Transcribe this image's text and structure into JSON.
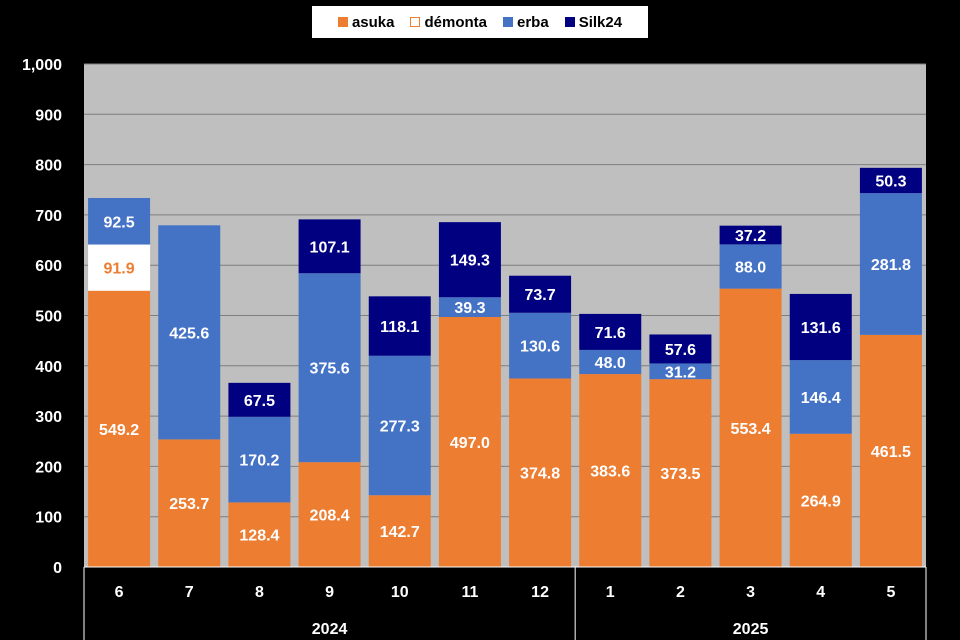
{
  "chart_data": {
    "type": "bar",
    "stacked": true,
    "title": "",
    "xlabel": "",
    "ylabel": "",
    "ylim": [
      0,
      1000
    ],
    "yticks": [
      "0",
      "100",
      "200",
      "300",
      "400",
      "500",
      "600",
      "700",
      "800",
      "900",
      "1,000"
    ],
    "grid": true,
    "legend_position": "top",
    "categories": [
      "6",
      "7",
      "8",
      "9",
      "10",
      "11",
      "12",
      "1",
      "2",
      "3",
      "4",
      "5"
    ],
    "year_groups": [
      {
        "label": "2024",
        "count": 7
      },
      {
        "label": "2025",
        "count": 5
      }
    ],
    "series": [
      {
        "name": "asuka",
        "color": "#ED7D31",
        "label_color": "#FFFFFF",
        "values": [
          549.2,
          253.7,
          128.4,
          208.4,
          142.7,
          497.0,
          374.8,
          383.6,
          373.5,
          553.4,
          264.9,
          461.5
        ]
      },
      {
        "name": "démonta",
        "color": "#FFFFFF",
        "label_color": "#ED7D31",
        "values": [
          91.9,
          null,
          null,
          null,
          null,
          null,
          null,
          null,
          null,
          null,
          null,
          null
        ]
      },
      {
        "name": "erba",
        "color": "#4472C4",
        "label_color": "#FFFFFF",
        "values": [
          92.5,
          425.6,
          170.2,
          375.6,
          277.3,
          39.3,
          130.6,
          48.0,
          31.2,
          88.0,
          146.4,
          281.8
        ]
      },
      {
        "name": "Silk24",
        "color": "#000080",
        "label_color": "#FFFFFF",
        "values": [
          null,
          null,
          67.5,
          107.1,
          118.1,
          149.3,
          73.7,
          71.6,
          57.6,
          37.2,
          131.6,
          50.3
        ]
      }
    ],
    "plot_background": "#BFBFBF",
    "page_background": "#000000"
  }
}
